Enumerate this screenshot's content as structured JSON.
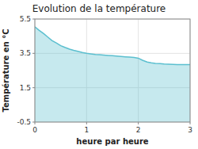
{
  "chart_data": {
    "type": "area",
    "title": "Evolution de la température",
    "x_label": "heure par heure",
    "y_label": "Température en °C",
    "x": [
      0,
      0.08,
      0.17,
      0.25,
      0.33,
      0.42,
      0.5,
      0.58,
      0.67,
      0.75,
      0.83,
      0.92,
      1.0,
      1.08,
      1.17,
      1.25,
      1.33,
      1.42,
      1.5,
      1.58,
      1.67,
      1.75,
      1.83,
      1.92,
      2.0,
      2.08,
      2.17,
      2.25,
      2.33,
      2.42,
      2.5,
      2.58,
      2.67,
      2.75,
      2.83,
      2.92,
      3.0
    ],
    "values": [
      5.05,
      4.85,
      4.65,
      4.45,
      4.25,
      4.1,
      3.95,
      3.85,
      3.75,
      3.68,
      3.62,
      3.55,
      3.5,
      3.47,
      3.44,
      3.42,
      3.4,
      3.38,
      3.36,
      3.34,
      3.32,
      3.3,
      3.28,
      3.26,
      3.22,
      3.1,
      3.0,
      2.95,
      2.92,
      2.9,
      2.88,
      2.87,
      2.86,
      2.85,
      2.85,
      2.85,
      2.85
    ],
    "color": "#5bbfcf",
    "xlim": [
      0,
      3
    ],
    "ylim": [
      -0.5,
      5.5
    ],
    "xticks": [
      0,
      1,
      2,
      3
    ],
    "yticks": [
      -0.5,
      1.5,
      3.5,
      5.5
    ],
    "grid": true
  }
}
